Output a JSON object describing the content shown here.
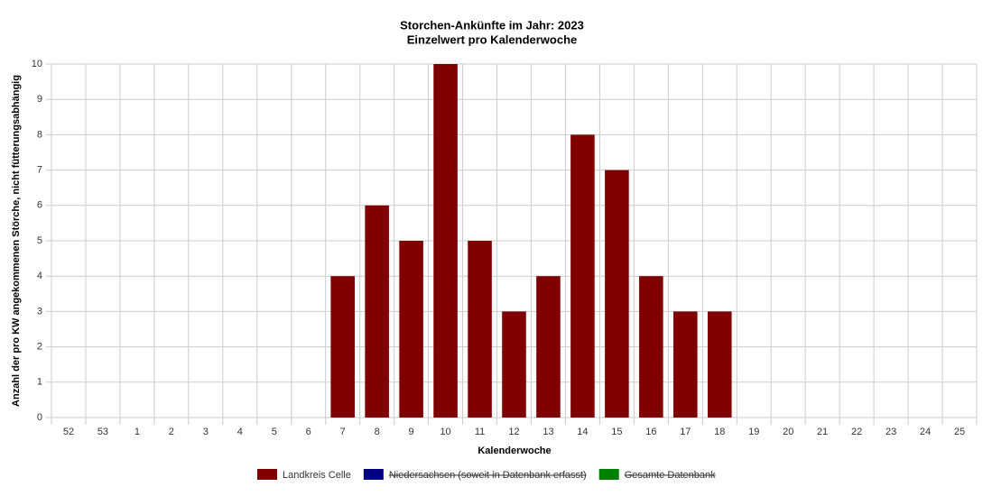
{
  "chart_data": {
    "type": "bar",
    "title": "Storchen-Ankünfte im Jahr: 2023",
    "subtitle": "Einzelwert pro Kalenderwoche",
    "x_label": "Kalenderwoche",
    "y_label": "Anzahl der pro KW angekommenen Störche, nicht fütterungsabhängig",
    "categories": [
      "52",
      "53",
      "1",
      "2",
      "3",
      "4",
      "5",
      "6",
      "7",
      "8",
      "9",
      "10",
      "11",
      "12",
      "13",
      "14",
      "15",
      "16",
      "17",
      "18",
      "19",
      "20",
      "21",
      "22",
      "23",
      "24",
      "25"
    ],
    "series": [
      {
        "name": "Landkreis Celle",
        "color": "#800000",
        "values": [
          0,
          0,
          0,
          0,
          0,
          0,
          0,
          0,
          4,
          6,
          5,
          10,
          5,
          3,
          4,
          8,
          7,
          4,
          3,
          3,
          0,
          0,
          0,
          0,
          0,
          0,
          0
        ]
      },
      {
        "name": "Niedersachsen (soweit in Datenbank erfasst)",
        "color": "#000080",
        "hidden": true
      },
      {
        "name": "Gesamte Datenbank",
        "color": "#008000",
        "hidden": true
      }
    ],
    "ylim": [
      0,
      10
    ],
    "yticks": [
      0,
      1,
      2,
      3,
      4,
      5,
      6,
      7,
      8,
      9,
      10
    ],
    "grid": true
  }
}
